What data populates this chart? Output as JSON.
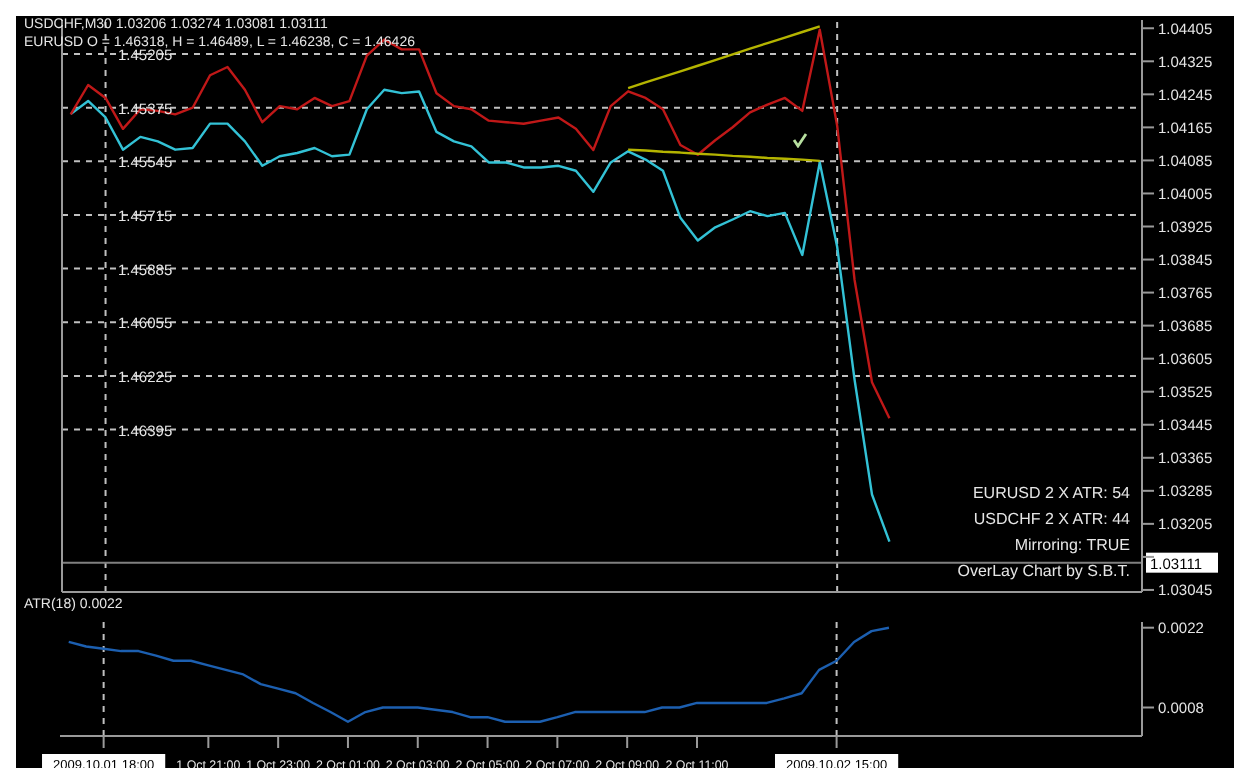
{
  "chart_data": [
    {
      "type": "line",
      "title": "USDCHF,M30  1.03206 1.03274 1.03081 1.03111",
      "subtitle": "EURUSD O = 1.46318, H = 1.46489, L = 1.46238, C = 1.46426",
      "categories": [
        null,
        null,
        "2009.10.01 18:00",
        null,
        null,
        null,
        null,
        null,
        "1 Oct 21:00",
        null,
        null,
        null,
        "1 Oct 23:00",
        null,
        null,
        null,
        "2 Oct 01:00",
        null,
        null,
        null,
        "2 Oct 03:00",
        null,
        null,
        null,
        "2 Oct 05:00",
        null,
        null,
        null,
        "2 Oct 07:00",
        null,
        null,
        null,
        "2 Oct 09:00",
        null,
        null,
        null,
        "2 Oct 11:00",
        null,
        null,
        null,
        null,
        null,
        null,
        null,
        "2009.10.02 15:00",
        null,
        null,
        null,
        null,
        null,
        null,
        null,
        null,
        null,
        null,
        null,
        null,
        null,
        null,
        null,
        null,
        null
      ],
      "series": [
        {
          "color": "#33c2d6",
          "values": [
            1.04197,
            1.04229,
            1.04189,
            1.04111,
            1.04142,
            1.04131,
            1.04111,
            1.04115,
            1.04174,
            1.04174,
            1.04131,
            1.04072,
            1.04095,
            1.04103,
            1.04115,
            1.04095,
            1.04099,
            1.04209,
            1.04256,
            1.04248,
            1.04252,
            1.04154,
            1.04131,
            1.04119,
            1.0408,
            1.0408,
            1.04068,
            1.04068,
            1.04072,
            1.0406,
            1.04009,
            1.0408,
            1.04107,
            1.04087,
            1.0406,
            1.03946,
            1.03891,
            1.03923,
            1.03942,
            1.03962,
            1.0395,
            1.03958,
            1.03856,
            1.0408,
            1.03876,
            1.03554,
            1.03276,
            1.03162,
            null,
            null,
            null,
            null,
            null,
            null,
            null,
            null,
            null,
            null,
            null,
            null,
            null,
            null
          ]
        },
        {
          "color": "#c01818",
          "axis": "y2",
          "values": [
            1.45396,
            1.45303,
            1.45344,
            1.45442,
            1.4538,
            1.45385,
            1.45396,
            1.45375,
            1.45272,
            1.45246,
            1.45318,
            1.45421,
            1.4537,
            1.4538,
            1.45344,
            1.4537,
            1.45354,
            1.4521,
            1.45159,
            1.4519,
            1.4519,
            1.45329,
            1.4537,
            1.4538,
            1.45416,
            1.45421,
            1.45426,
            1.45416,
            1.45406,
            1.45442,
            1.45509,
            1.4537,
            1.45323,
            1.45344,
            1.4538,
            1.45493,
            1.45524,
            1.45478,
            1.45437,
            1.4539,
            1.45365,
            1.45344,
            1.45385,
            1.45128,
            1.45432,
            1.45921,
            1.46245,
            1.46359,
            null,
            null,
            null,
            null,
            null,
            null,
            null,
            null,
            null,
            null,
            null,
            null,
            null,
            null
          ]
        },
        {
          "type": "line",
          "color": "#b4b400",
          "values": [
            null,
            null,
            null,
            null,
            null,
            null,
            null,
            null,
            null,
            null,
            null,
            null,
            null,
            null,
            null,
            null,
            null,
            null,
            null,
            null,
            null,
            null,
            null,
            null,
            null,
            null,
            null,
            null,
            null,
            null,
            null,
            null,
            1.04111,
            1.04109,
            1.04106,
            1.04104,
            1.04101,
            1.04099,
            1.04096,
            1.04094,
            1.04091,
            1.04089,
            1.04087,
            1.04084,
            null,
            null,
            null,
            null,
            null,
            null,
            null,
            null,
            null,
            null,
            null,
            null,
            null,
            null,
            null,
            null,
            null,
            null
          ]
        },
        {
          "type": "line",
          "color": "#b4b400",
          "axis": "y2",
          "values": [
            null,
            null,
            null,
            null,
            null,
            null,
            null,
            null,
            null,
            null,
            null,
            null,
            null,
            null,
            null,
            null,
            null,
            null,
            null,
            null,
            null,
            null,
            null,
            null,
            null,
            null,
            null,
            null,
            null,
            null,
            null,
            null,
            1.45313,
            1.45295,
            1.45277,
            1.4526,
            1.45242,
            1.45224,
            1.45206,
            1.45188,
            1.4517,
            1.45153,
            1.45135,
            1.45117,
            null,
            null,
            null,
            null,
            null,
            null,
            null,
            null,
            null,
            null,
            null,
            null,
            null,
            null,
            null,
            null,
            null,
            null
          ]
        }
      ],
      "ylim": [
        1.0304,
        1.04425
      ],
      "yticks": [
        1.04405,
        1.04325,
        1.04245,
        1.04165,
        1.04085,
        1.04005,
        1.03925,
        1.03845,
        1.03765,
        1.03685,
        1.03605,
        1.03525,
        1.03445,
        1.03365,
        1.03285,
        1.03205,
        {
          "value": 1.03125,
          "label": null
        },
        1.03045
      ],
      "y2lim": [
        1.4691,
        1.45097
      ],
      "y2ticks": [
        1.45205,
        1.45375,
        1.45545,
        1.45715,
        1.45885,
        1.46055,
        1.46225,
        1.46395
      ],
      "grid": "y",
      "tick_labels": "y",
      "ref_lines": [
        {
          "axis": "x",
          "value": "2009.10.01 18:00",
          "color": "#c0c0c0",
          "line_style": "dashed"
        },
        {
          "axis": "x",
          "value": "2009.10.02 15:00",
          "color": "#c0c0c0",
          "line_style": "dashed"
        },
        {
          "axis": "y",
          "value": 1.03111,
          "label": "1.03111",
          "color": "#808080",
          "line_style": "solid"
        }
      ],
      "annotations": [
        "EURUSD 2 X ATR: 54",
        "USDCHF 2 X ATR: 44",
        "Mirroring: TRUE",
        "OverLay Chart by S.B.T."
      ]
    },
    {
      "type": "line",
      "title": "ATR(18) 0.0022",
      "categories": [
        null,
        null,
        "2009.10.01 18:00",
        null,
        null,
        null,
        null,
        null,
        "1 Oct 21:00",
        null,
        null,
        null,
        "1 Oct 23:00",
        null,
        null,
        null,
        "2 Oct 01:00",
        null,
        null,
        null,
        "2 Oct 03:00",
        null,
        null,
        null,
        "2 Oct 05:00",
        null,
        null,
        null,
        "2 Oct 07:00",
        null,
        null,
        null,
        "2 Oct 09:00",
        null,
        null,
        null,
        "2 Oct 11:00",
        null,
        null,
        null,
        null,
        null,
        null,
        null,
        "2009.10.02 15:00",
        null,
        null,
        null,
        null,
        null,
        null,
        null,
        null,
        null,
        null,
        null,
        null,
        null,
        null,
        null,
        null,
        null
      ],
      "series": [
        {
          "color": "#1c5fb0",
          "values": [
            0.00195,
            0.00187,
            0.00183,
            0.00179,
            0.00179,
            0.00171,
            0.00162,
            0.00162,
            0.00154,
            0.00146,
            0.00138,
            0.00121,
            0.00113,
            0.00105,
            0.00088,
            0.00072,
            0.00055,
            0.00072,
            0.0008,
            0.0008,
            0.0008,
            0.00076,
            0.00072,
            0.00063,
            0.00063,
            0.00055,
            0.00055,
            0.00055,
            0.00063,
            0.00072,
            0.00072,
            0.00072,
            0.00072,
            0.00072,
            0.0008,
            0.0008,
            0.00088,
            0.00088,
            0.00088,
            0.00088,
            0.00088,
            0.00096,
            0.00105,
            0.00146,
            0.00162,
            0.00195,
            0.00214,
            0.0022,
            null,
            null,
            null,
            null,
            null,
            null,
            null,
            null,
            null,
            null,
            null,
            null,
            null,
            null
          ]
        }
      ],
      "ylim": [
        0.0003,
        0.0023
      ],
      "yticks": [
        0.0022,
        0.0008
      ],
      "ref_lines": [
        {
          "axis": "x",
          "value": "2009.10.01 18:00",
          "color": "#c0c0c0",
          "line_style": "dashed"
        },
        {
          "axis": "x",
          "value": "2009.10.02 15:00",
          "color": "#c0c0c0",
          "line_style": "dashed"
        }
      ]
    }
  ]
}
